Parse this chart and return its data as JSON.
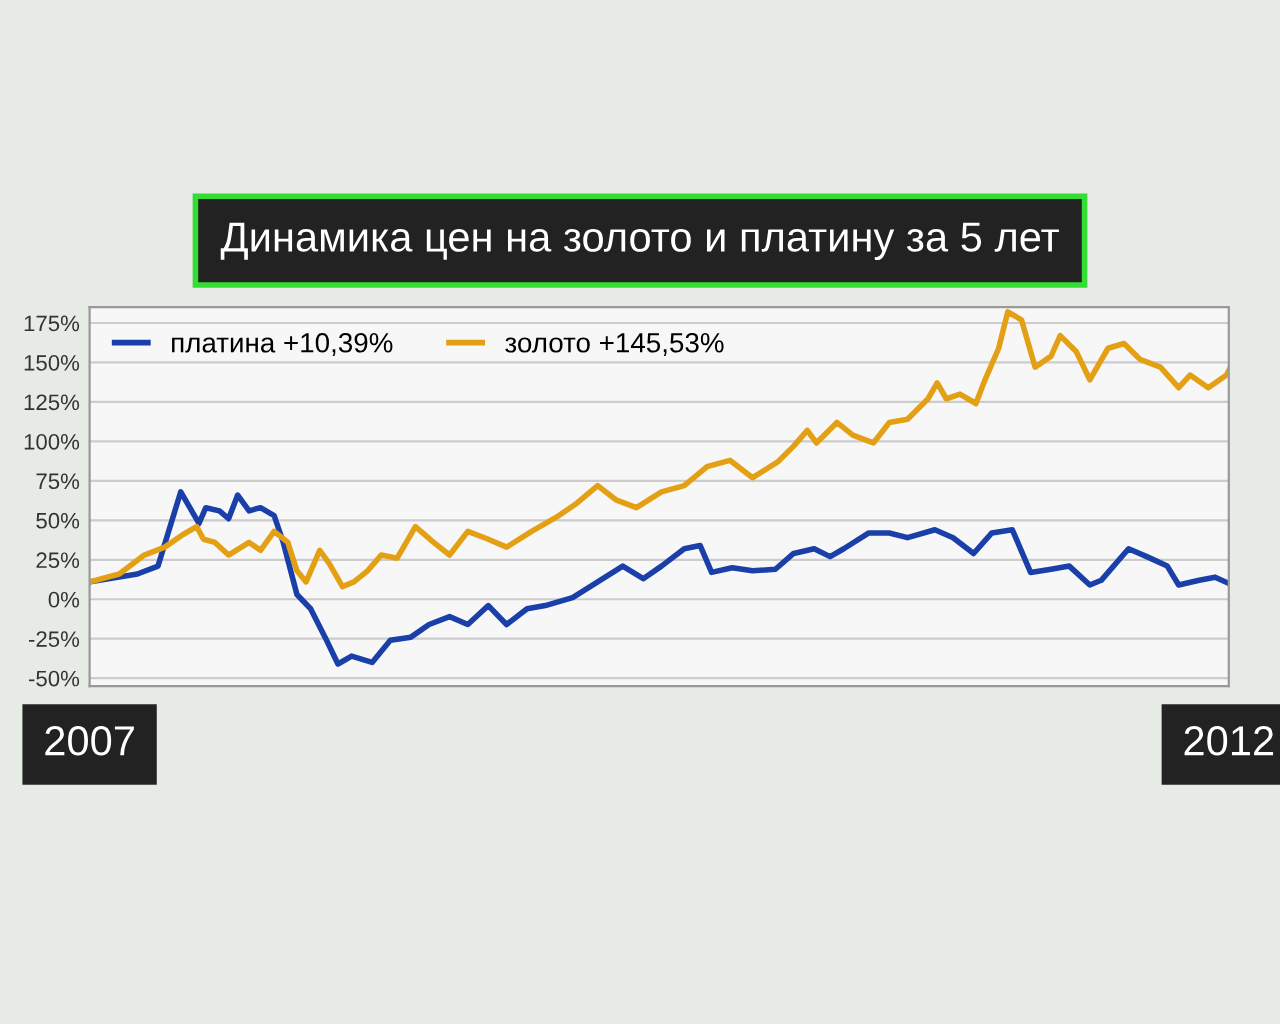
{
  "chart_data": {
    "type": "line",
    "title": "Динамика цен на золото и платину за 5 лет",
    "series": [
      {
        "name": "платина +10,39%",
        "color": "#1a3fa8",
        "x": [
          2007.0,
          2007.21,
          2007.3,
          2007.4,
          2007.44,
          2007.48,
          2007.51,
          2007.57,
          2007.61,
          2007.65,
          2007.7,
          2007.75,
          2007.81,
          2007.85,
          2007.91,
          2007.97,
          2008.04,
          2008.09,
          2008.15,
          2008.24,
          2008.32,
          2008.41,
          2008.49,
          2008.58,
          2008.66,
          2008.75,
          2008.83,
          2008.92,
          2009.0,
          2009.12,
          2009.23,
          2009.34,
          2009.43,
          2009.51,
          2009.61,
          2009.68,
          2009.73,
          2009.82,
          2009.91,
          2010.01,
          2010.09,
          2010.18,
          2010.25,
          2010.31,
          2010.42,
          2010.51,
          2010.59,
          2010.71,
          2010.79,
          2010.88,
          2010.96,
          2011.05,
          2011.13,
          2011.22,
          2011.3,
          2011.39,
          2011.44,
          2011.56,
          2011.64,
          2011.73,
          2011.78,
          2011.87,
          2011.94,
          2012.0
        ],
        "values": [
          11,
          16,
          21,
          68,
          58,
          48,
          58,
          56,
          51,
          66,
          56,
          58,
          53,
          36,
          3,
          -6,
          -26,
          -41,
          -36,
          -40,
          -26,
          -24,
          -16,
          -11,
          -16,
          -4,
          -16,
          -6,
          -4,
          1,
          11,
          21,
          13,
          21,
          32,
          34,
          17,
          20,
          18,
          19,
          29,
          32,
          27,
          32,
          42,
          42,
          39,
          44,
          39,
          29,
          42,
          44,
          17,
          19,
          21,
          9,
          12,
          32,
          27,
          21,
          9,
          12,
          14,
          10
        ]
      },
      {
        "name": "золото +145,53%",
        "color": "#e3a014",
        "x": [
          2007.0,
          2007.13,
          2007.24,
          2007.33,
          2007.41,
          2007.47,
          2007.5,
          2007.55,
          2007.61,
          2007.7,
          2007.75,
          2007.81,
          2007.87,
          2007.91,
          2007.95,
          2008.01,
          2008.05,
          2008.11,
          2008.16,
          2008.22,
          2008.28,
          2008.35,
          2008.43,
          2008.51,
          2008.58,
          2008.66,
          2008.75,
          2008.83,
          2008.94,
          2009.06,
          2009.14,
          2009.23,
          2009.31,
          2009.4,
          2009.51,
          2009.61,
          2009.71,
          2009.81,
          2009.91,
          2010.02,
          2010.09,
          2010.15,
          2010.19,
          2010.28,
          2010.35,
          2010.44,
          2010.51,
          2010.59,
          2010.68,
          2010.72,
          2010.76,
          2010.82,
          2010.89,
          2010.93,
          2010.99,
          2011.03,
          2011.09,
          2011.15,
          2011.22,
          2011.26,
          2011.33,
          2011.39,
          2011.47,
          2011.54,
          2011.61,
          2011.7,
          2011.78,
          2011.83,
          2011.91,
          2011.99,
          2012.0
        ],
        "values": [
          11,
          16,
          28,
          33,
          41,
          46,
          38,
          36,
          28,
          36,
          31,
          43,
          36,
          18,
          11,
          31,
          23,
          8,
          11,
          18,
          28,
          26,
          46,
          36,
          28,
          43,
          38,
          33,
          43,
          53,
          61,
          72,
          63,
          58,
          68,
          72,
          84,
          88,
          77,
          87,
          97,
          107,
          99,
          112,
          104,
          99,
          112,
          114,
          127,
          137,
          127,
          130,
          124,
          139,
          159,
          182,
          177,
          147,
          154,
          167,
          157,
          139,
          159,
          162,
          152,
          147,
          134,
          142,
          134,
          142,
          145
        ]
      }
    ],
    "xlim": [
      2007,
      2012
    ],
    "xticks": [
      2007,
      2012
    ],
    "ylim": [
      -55,
      185
    ],
    "yticks": [
      {
        "value": -50,
        "label": "-50%"
      },
      {
        "value": -25,
        "label": "-25%"
      },
      {
        "value": 0,
        "label": "0%"
      },
      {
        "value": 25,
        "label": "25%"
      },
      {
        "value": 50,
        "label": "50%"
      },
      {
        "value": 75,
        "label": "75%"
      },
      {
        "value": 100,
        "label": "100%"
      },
      {
        "value": 125,
        "label": "125%"
      },
      {
        "value": 150,
        "label": "150%"
      },
      {
        "value": 175,
        "label": "175%"
      }
    ],
    "grid": "y",
    "legend": "top left",
    "marker": "none",
    "line_style": "solid"
  }
}
